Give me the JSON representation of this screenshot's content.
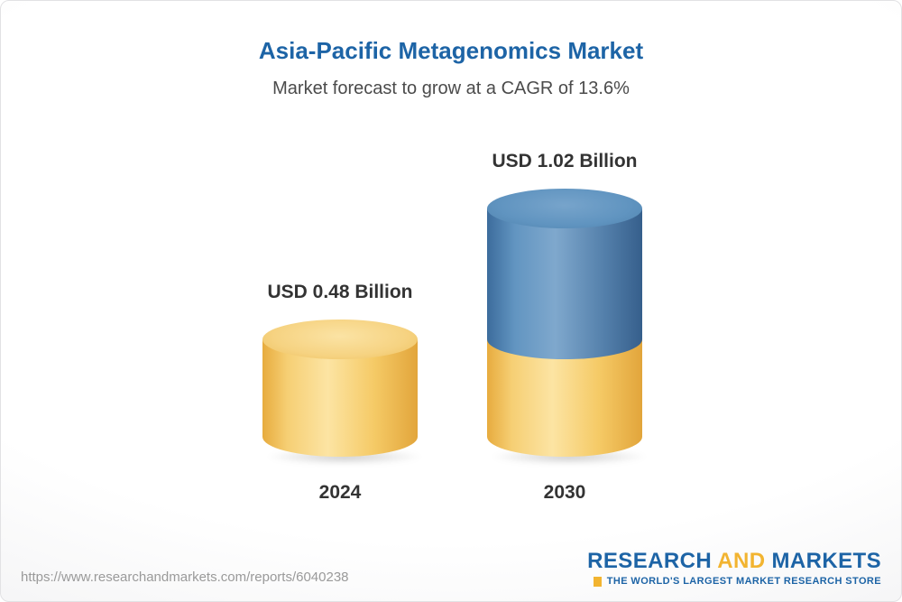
{
  "header": {
    "title": "Asia-Pacific Metagenomics Market",
    "subtitle": "Market forecast to grow at a CAGR of 13.6%"
  },
  "chart_data": {
    "type": "bar",
    "bar_style": "3d-cylinder-stacked",
    "title": "Asia-Pacific Metagenomics Market",
    "subtitle": "Market forecast to grow at a CAGR of 13.6%",
    "categories": [
      "2024",
      "2030"
    ],
    "values": [
      0.48,
      1.02
    ],
    "value_labels": [
      "USD 0.48 Billion",
      "USD 1.02 Billion"
    ],
    "unit": "USD Billion",
    "cagr_pct": 13.6,
    "ylim": [
      0,
      1.2
    ],
    "grid": false,
    "legend": "none",
    "segments_2030": {
      "base": 0.48,
      "growth": 0.54
    },
    "colors": {
      "base_segment": "#F5CB66",
      "growth_segment": "#4A7EAD",
      "title_blue": "#1D64A6",
      "label_text": "#333333"
    }
  },
  "footer": {
    "url": "https://www.researchandmarkets.com/reports/6040238",
    "logo": {
      "text_research": "RESEARCH",
      "text_and": "AND",
      "text_markets": "MARKETS",
      "tagline": "THE WORLD'S LARGEST MARKET RESEARCH STORE",
      "brand_blue": "#1D64A6",
      "brand_yellow": "#F2B430"
    }
  }
}
